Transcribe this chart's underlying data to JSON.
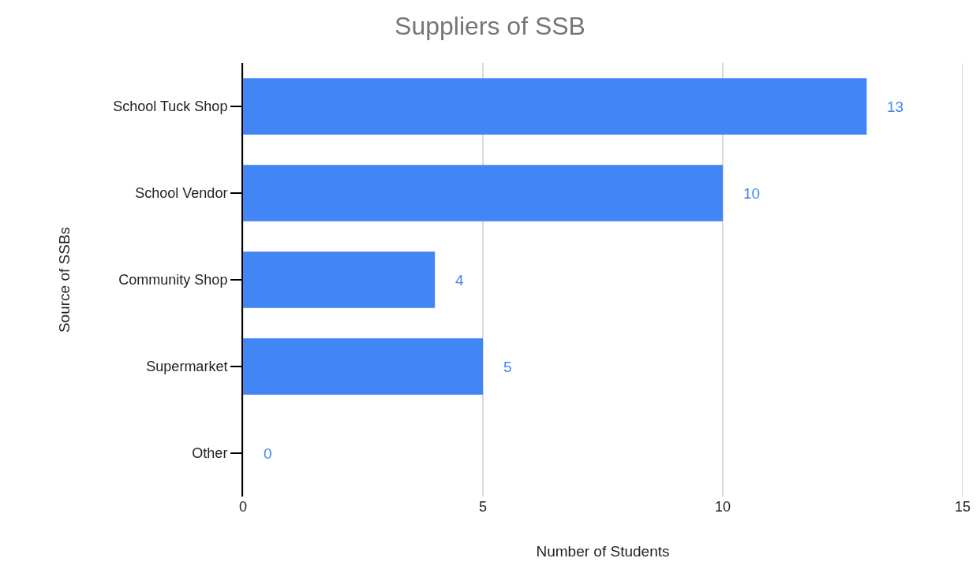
{
  "chart_data": {
    "type": "bar",
    "orientation": "horizontal",
    "title": "Suppliers of SSB",
    "xlabel": "Number of Students",
    "ylabel": "Source of SSBs",
    "categories": [
      "School Tuck Shop",
      "School Vendor",
      "Community Shop",
      "Supermarket",
      "Other"
    ],
    "values": [
      13,
      10,
      4,
      5,
      0
    ],
    "color": "#4285f4",
    "xlim": [
      0,
      15
    ],
    "xticks": [
      0,
      5,
      10,
      15
    ],
    "grid": "x",
    "legend": false,
    "data_labels": true
  }
}
